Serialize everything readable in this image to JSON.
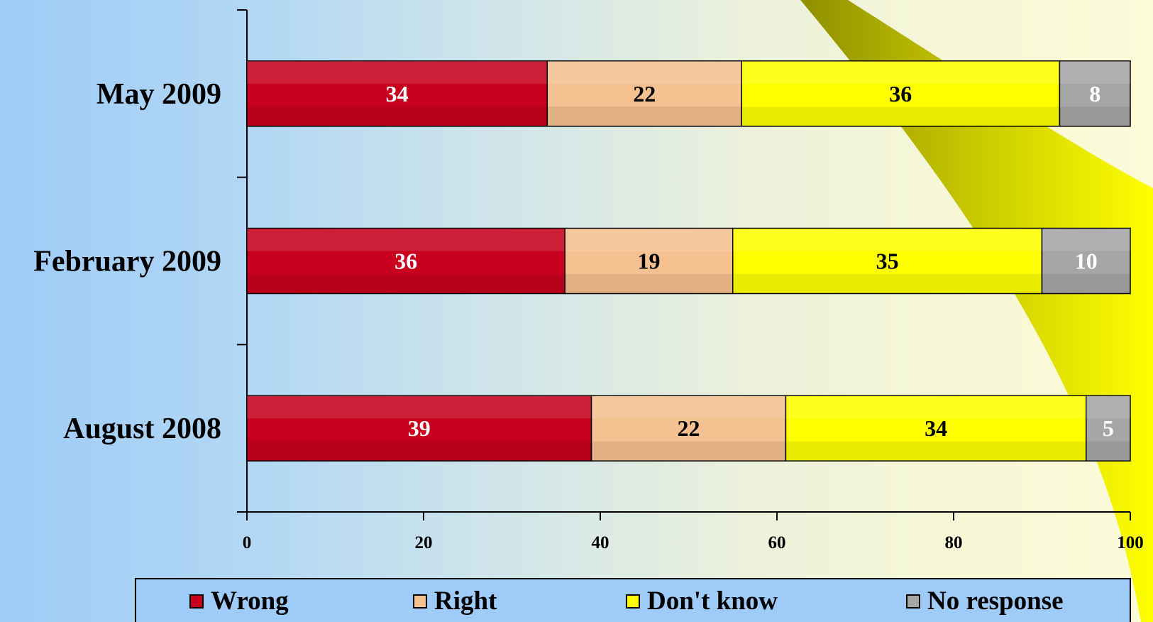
{
  "chart_data": {
    "type": "bar",
    "orientation": "horizontal",
    "stacked": true,
    "categories": [
      "May 2009",
      "February 2009",
      "August 2008"
    ],
    "series": [
      {
        "name": "Wrong",
        "values": [
          34,
          36,
          39
        ],
        "color": "#c8001e"
      },
      {
        "name": "Right",
        "values": [
          22,
          19,
          22
        ],
        "color": "#f5c190"
      },
      {
        "name": "Don't know",
        "values": [
          36,
          35,
          34
        ],
        "color": "#ffff00"
      },
      {
        "name": "No response",
        "values": [
          8,
          10,
          5
        ],
        "color": "#a6a6a6"
      }
    ],
    "xlim": [
      0,
      100
    ],
    "xticks": [
      "0",
      "20",
      "40",
      "60",
      "80",
      "100"
    ],
    "label_colors": [
      "#ffffff",
      "#000000",
      "#000000",
      "#ffffff"
    ],
    "legend_position": "bottom",
    "grid": false
  }
}
